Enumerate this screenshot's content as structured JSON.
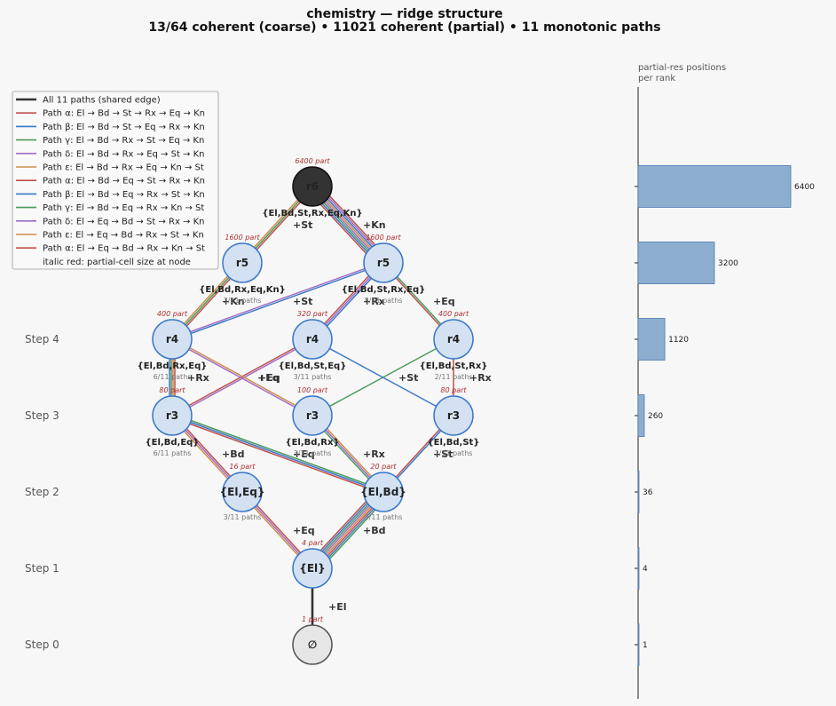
{
  "title": {
    "line1": "chemistry — ridge structure",
    "line2": "13/64 coherent (coarse)  •  11021 coherent (partial)  •  11 monotonic paths"
  },
  "steps": [
    "Step 0",
    "Step 1",
    "Step 2",
    "Step 3",
    "Step 4"
  ],
  "legend": [
    {
      "label": "All 11 paths (shared edge)",
      "color": "#333333"
    },
    {
      "label": "Path α: El → Bd → St → Rx → Eq → Kn",
      "color": "#c0504d"
    },
    {
      "label": "Path β: El → Bd → St → Eq → Rx → Kn",
      "color": "#3a78c9"
    },
    {
      "label": "Path γ: El → Bd → Rx → St → Eq → Kn",
      "color": "#4a9a5c"
    },
    {
      "label": "Path δ: El → Bd → Rx → Eq → St → Kn",
      "color": "#a06cc4"
    },
    {
      "label": "Path ε: El → Bd → Rx → Eq → Kn → St",
      "color": "#d08c4a"
    },
    {
      "label": "Path α: El → Bd → Eq → St → Rx → Kn",
      "color": "#c0504d"
    },
    {
      "label": "Path β: El → Bd → Eq → Rx → St → Kn",
      "color": "#3a78c9"
    },
    {
      "label": "Path γ: El → Bd → Eq → Rx → Kn → St",
      "color": "#4a9a5c"
    },
    {
      "label": "Path δ: El → Eq → Bd → St → Rx → Kn",
      "color": "#a06cc4"
    },
    {
      "label": "Path ε: El → Eq → Bd → Rx → St → Kn",
      "color": "#d08c4a"
    },
    {
      "label": "Path α: El → Eq → Bd → Rx → Kn → St",
      "color": "#c0504d"
    },
    {
      "label": "italic red: partial-cell size at node",
      "color": ""
    }
  ],
  "nodes": [
    {
      "id": "n0",
      "label": "∅",
      "part": "1 part",
      "set": "",
      "paths": "",
      "style": "empty"
    },
    {
      "id": "n1",
      "label": "{El}",
      "part": "4 part",
      "set": "",
      "paths": "",
      "style": "light"
    },
    {
      "id": "n2a",
      "label": "{El,Eq}",
      "part": "16 part",
      "set": "",
      "paths": "3/11 paths",
      "style": "light"
    },
    {
      "id": "n2b",
      "label": "{El,Bd}",
      "part": "20 part",
      "set": "",
      "paths": "8/11 paths",
      "style": "light"
    },
    {
      "id": "n3a",
      "label": "r3",
      "part": "80 part",
      "set": "{El,Bd,Eq}",
      "paths": "6/11 paths",
      "style": "light"
    },
    {
      "id": "n3b",
      "label": "r3",
      "part": "100 part",
      "set": "{El,Bd,Rx}",
      "paths": "3/11 paths",
      "style": "light"
    },
    {
      "id": "n3c",
      "label": "r3",
      "part": "80 part",
      "set": "{El,Bd,St}",
      "paths": "2/11 paths",
      "style": "light"
    },
    {
      "id": "n4a",
      "label": "r4",
      "part": "400 part",
      "set": "{El,Bd,Rx,Eq}",
      "paths": "6/11 paths",
      "style": "light"
    },
    {
      "id": "n4b",
      "label": "r4",
      "part": "320 part",
      "set": "{El,Bd,St,Eq}",
      "paths": "3/11 paths",
      "style": "light"
    },
    {
      "id": "n4c",
      "label": "r4",
      "part": "400 part",
      "set": "{El,Bd,St,Rx}",
      "paths": "2/11 paths",
      "style": "light"
    },
    {
      "id": "n5a",
      "label": "r5",
      "part": "1600 part",
      "set": "{El,Bd,Rx,Eq,Kn}",
      "paths": "3/11 paths",
      "style": "light"
    },
    {
      "id": "n5b",
      "label": "r5",
      "part": "1600 part",
      "set": "{El,Bd,St,Rx,Eq}",
      "paths": "8/11 paths",
      "style": "light"
    },
    {
      "id": "n6",
      "label": "r6",
      "part": "6400 part",
      "set": "{El,Bd,St,Rx,Eq,Kn}",
      "paths": "",
      "style": "dark"
    }
  ],
  "edge_labels": [
    {
      "text": "+El",
      "color": "#333333"
    },
    {
      "text": "+Eq",
      "color": "#333333"
    },
    {
      "text": "+Bd",
      "color": "#333333"
    },
    {
      "text": "+Bd",
      "color": "#333333"
    },
    {
      "text": "+Eq",
      "color": "#333333"
    },
    {
      "text": "+Rx",
      "color": "#333333"
    },
    {
      "text": "+St",
      "color": "#333333"
    },
    {
      "text": "+Rx",
      "color": "#333333"
    },
    {
      "text": "+Eq",
      "color": "#333333"
    },
    {
      "text": "+St",
      "color": "#333333"
    },
    {
      "text": "+Eq",
      "color": "#4a9a5c"
    },
    {
      "text": "+Rx",
      "color": "#c0504d"
    },
    {
      "text": "+Kn",
      "color": "#333333"
    },
    {
      "text": "+St",
      "color": "#333333"
    },
    {
      "text": "+Rx",
      "color": "#333333"
    },
    {
      "text": "+Eq",
      "color": "#333333"
    },
    {
      "text": "+St",
      "color": "#333333"
    },
    {
      "text": "+Kn",
      "color": "#333333"
    }
  ],
  "side_chart": {
    "title_line1": "partial-res positions",
    "title_line2": "per rank",
    "bar_color": "#8eaed0",
    "values": [
      1,
      4,
      36,
      260,
      1120,
      3200,
      6400
    ],
    "labels": [
      "1",
      "4",
      "36",
      "260",
      "1120",
      "3200",
      "6400"
    ]
  }
}
